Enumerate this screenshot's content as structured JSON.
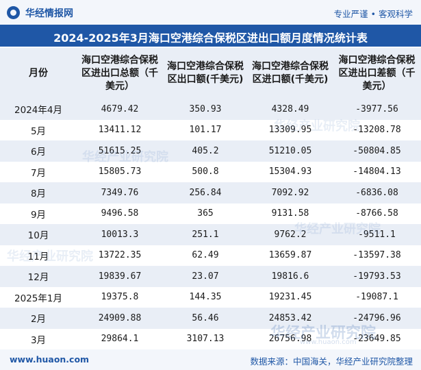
{
  "header": {
    "brand": "华经情报网",
    "slogan": "专业严谨 • 客观科学",
    "title": "2024-2025年3月海口空港综合保税区进出口额月度情况统计表"
  },
  "table": {
    "columns": [
      "月份",
      "海口空港综合保税区进出口总额（千美元）",
      "海口空港综合保税区出口额(千美元)",
      "海口空港综合保税区进口额(千美元)",
      "海口空港综合保税区进出口差额（千美元）"
    ],
    "rows": [
      [
        "2024年4月",
        "4679.42",
        "350.93",
        "4328.49",
        "-3977.56"
      ],
      [
        "5月",
        "13411.12",
        "101.17",
        "13309.95",
        "-13208.78"
      ],
      [
        "6月",
        "51615.25",
        "405.2",
        "51210.05",
        "-50804.85"
      ],
      [
        "7月",
        "15805.73",
        "500.8",
        "15304.93",
        "-14804.13"
      ],
      [
        "8月",
        "7349.76",
        "256.84",
        "7092.92",
        "-6836.08"
      ],
      [
        "9月",
        "9496.58",
        "365",
        "9131.58",
        "-8766.58"
      ],
      [
        "10月",
        "10013.3",
        "251.1",
        "9762.2",
        "-9511.1"
      ],
      [
        "11月",
        "13722.35",
        "62.49",
        "13659.87",
        "-13597.38"
      ],
      [
        "12月",
        "19839.67",
        "23.07",
        "19816.6",
        "-19793.53"
      ],
      [
        "2025年1月",
        "19375.8",
        "144.35",
        "19231.45",
        "-19087.1"
      ],
      [
        "2月",
        "24909.88",
        "56.46",
        "24853.42",
        "-24796.96"
      ],
      [
        "3月",
        "29864.1",
        "3107.13",
        "26756.98",
        "-23649.85"
      ]
    ]
  },
  "footer": {
    "site": "www.huaon.com",
    "source": "数据来源：中国海关，华经产业研究院整理"
  },
  "watermark": {
    "main": "华经产业研究院",
    "sub": "www.huaon.com"
  },
  "colors": {
    "brand_blue": "#1f57a6",
    "stripe": "#e9eef6"
  }
}
